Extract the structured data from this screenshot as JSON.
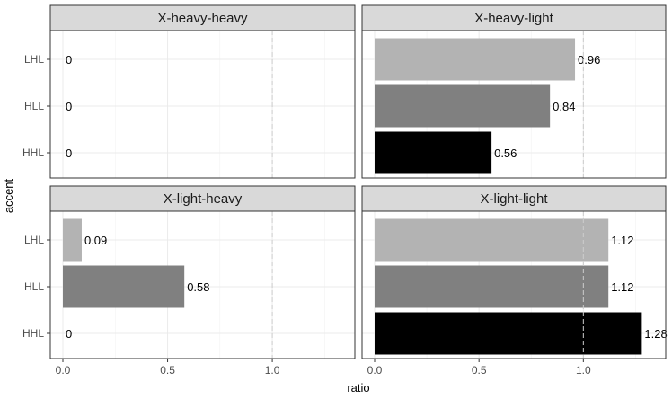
{
  "chart_data": {
    "type": "bar",
    "orientation": "horizontal",
    "facets": true,
    "xlabel": "ratio",
    "ylabel": "accent",
    "categories": [
      "LHL",
      "HLL",
      "HHL"
    ],
    "x_ticks": [
      "0.0",
      "0.5",
      "1.0"
    ],
    "xlim": [
      0,
      1.4
    ],
    "reference_line": 1.0,
    "bar_colors": {
      "LHL": "#b3b3b3",
      "HLL": "#808080",
      "HHL": "#000000"
    },
    "panels": [
      {
        "title": "X-heavy-heavy",
        "values": [
          0,
          0,
          0
        ],
        "labels": [
          "0",
          "0",
          "0"
        ]
      },
      {
        "title": "X-heavy-light",
        "values": [
          0.96,
          0.84,
          0.56
        ],
        "labels": [
          "0.96",
          "0.84",
          "0.56"
        ]
      },
      {
        "title": "X-light-heavy",
        "values": [
          0.09,
          0.58,
          0
        ],
        "labels": [
          "0.09",
          "0.58",
          "0"
        ]
      },
      {
        "title": "X-light-light",
        "values": [
          1.12,
          1.12,
          1.28
        ],
        "labels": [
          "1.12",
          "1.12",
          "1.28"
        ]
      }
    ]
  }
}
